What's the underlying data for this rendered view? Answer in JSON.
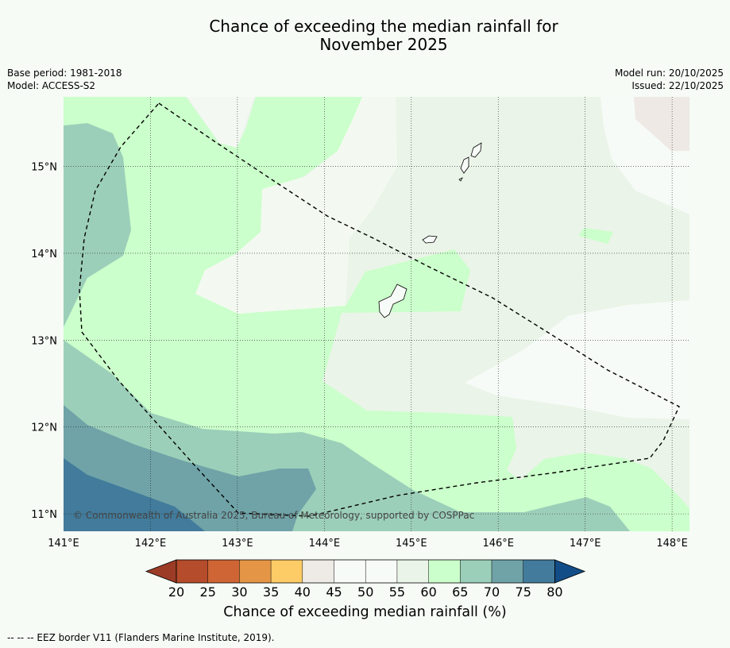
{
  "title": {
    "line1": "Chance of exceeding the median rainfall for",
    "line2": "November 2025"
  },
  "meta": {
    "base_period": "Base period: 1981-2018",
    "model": "Model: ACCESS-S2",
    "model_run": "Model run: 20/10/2025",
    "issued": "Issued: 22/10/2025"
  },
  "map": {
    "lon_range": [
      141,
      148.2
    ],
    "lat_range": [
      10.8,
      15.8
    ],
    "x_ticks": [
      {
        "value": 141,
        "label": "141°E"
      },
      {
        "value": 142,
        "label": "142°E"
      },
      {
        "value": 143,
        "label": "143°E"
      },
      {
        "value": 144,
        "label": "144°E"
      },
      {
        "value": 145,
        "label": "145°E"
      },
      {
        "value": 146,
        "label": "146°E"
      },
      {
        "value": 147,
        "label": "147°E"
      },
      {
        "value": 148,
        "label": "148°E"
      }
    ],
    "y_ticks": [
      {
        "value": 15,
        "label": "15°N"
      },
      {
        "value": 14,
        "label": "14°N"
      },
      {
        "value": 13,
        "label": "13°N"
      },
      {
        "value": 12,
        "label": "12°N"
      },
      {
        "value": 11,
        "label": "11°N"
      }
    ],
    "copyright": "© Commonwealth of Australia 2025, Bureau of Meteorology, supported by COSPPac"
  },
  "colorbar": {
    "ticks": [
      "20",
      "25",
      "30",
      "35",
      "40",
      "45",
      "50",
      "55",
      "60",
      "65",
      "70",
      "75",
      "80"
    ],
    "colors": {
      "below_20": "#9c3c26",
      "20_25": "#b54c2b",
      "25_30": "#cf6534",
      "30_35": "#e49545",
      "35_40": "#fdcc66",
      "40_45": "#eeebe7",
      "45_50": "#f7fbf7",
      "50_55": "#f7fbf7",
      "55_60": "#eaf4e8",
      "60_65": "#cbffcb",
      "65_70": "#9ccfb9",
      "70_75": "#6fa3a8",
      "75_80": "#427b9b",
      "above_80": "#134d87"
    },
    "label": "Chance of exceeding median rainfall (%)"
  },
  "footnote": "--  --  -- EEZ border V11 (Flanders Marine Institute, 2019)."
}
